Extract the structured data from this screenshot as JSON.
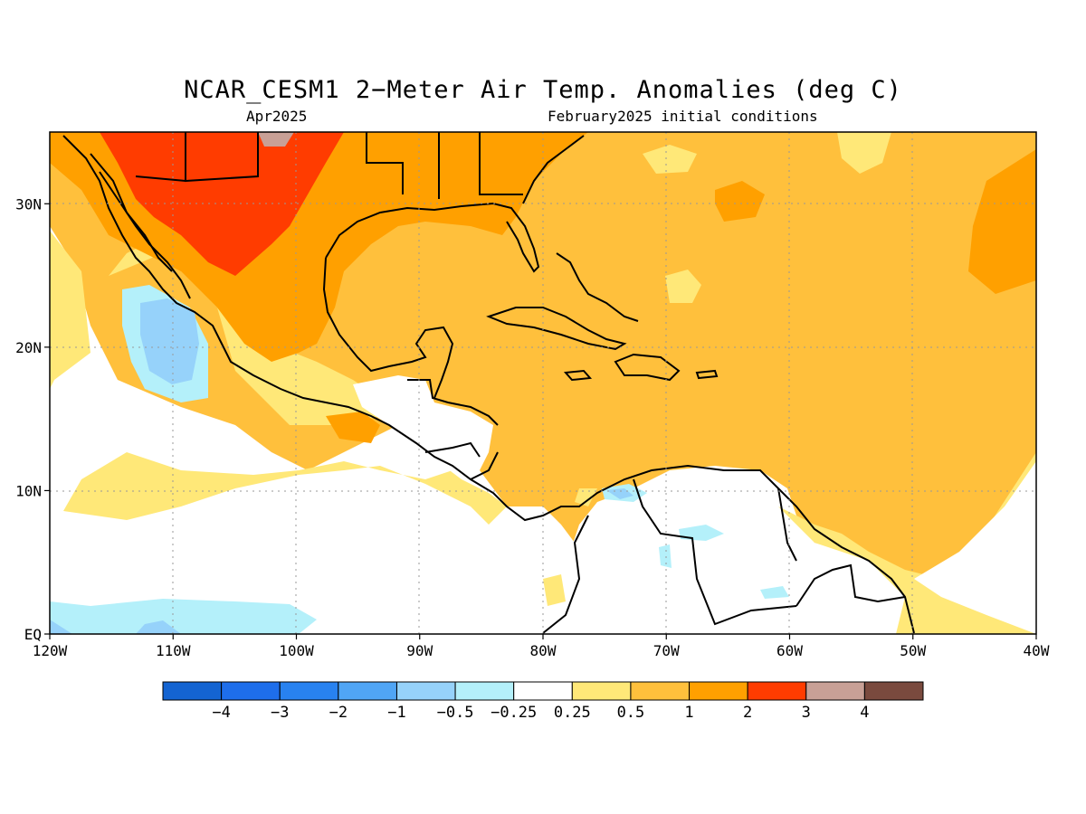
{
  "header": {
    "title": "NCAR_CESM1 2−Meter Air Temp. Anomalies (deg C)",
    "valid_month": "Apr2025",
    "initial_conditions": "February2025 initial conditions"
  },
  "map": {
    "lon_range": [
      -120,
      -40
    ],
    "lat_range": [
      0,
      35
    ],
    "lon_labels": [
      "120W",
      "110W",
      "100W",
      "90W",
      "80W",
      "70W",
      "60W",
      "50W",
      "40W"
    ],
    "lat_labels": [
      {
        "lat": 30,
        "label": "30N"
      },
      {
        "lat": 20,
        "label": "20N"
      },
      {
        "lat": 10,
        "label": "10N"
      },
      {
        "lat": 0,
        "label": "EQ"
      }
    ],
    "grid": "dotted"
  },
  "colorbar": {
    "colors": [
      "#1464d2",
      "#1e6eeb",
      "#2882f0",
      "#50a5f5",
      "#96d2fa",
      "#b4f0fa",
      "#ffffff",
      "#ffe878",
      "#ffc03c",
      "#ffa000",
      "#ff3c00",
      "#c8a096",
      "#7a4a3e"
    ],
    "labels": [
      "−4",
      "−3",
      "−2",
      "−1",
      "−0.5",
      "−0.25",
      "0.25",
      "0.5",
      "1",
      "2",
      "3",
      "4"
    ]
  }
}
